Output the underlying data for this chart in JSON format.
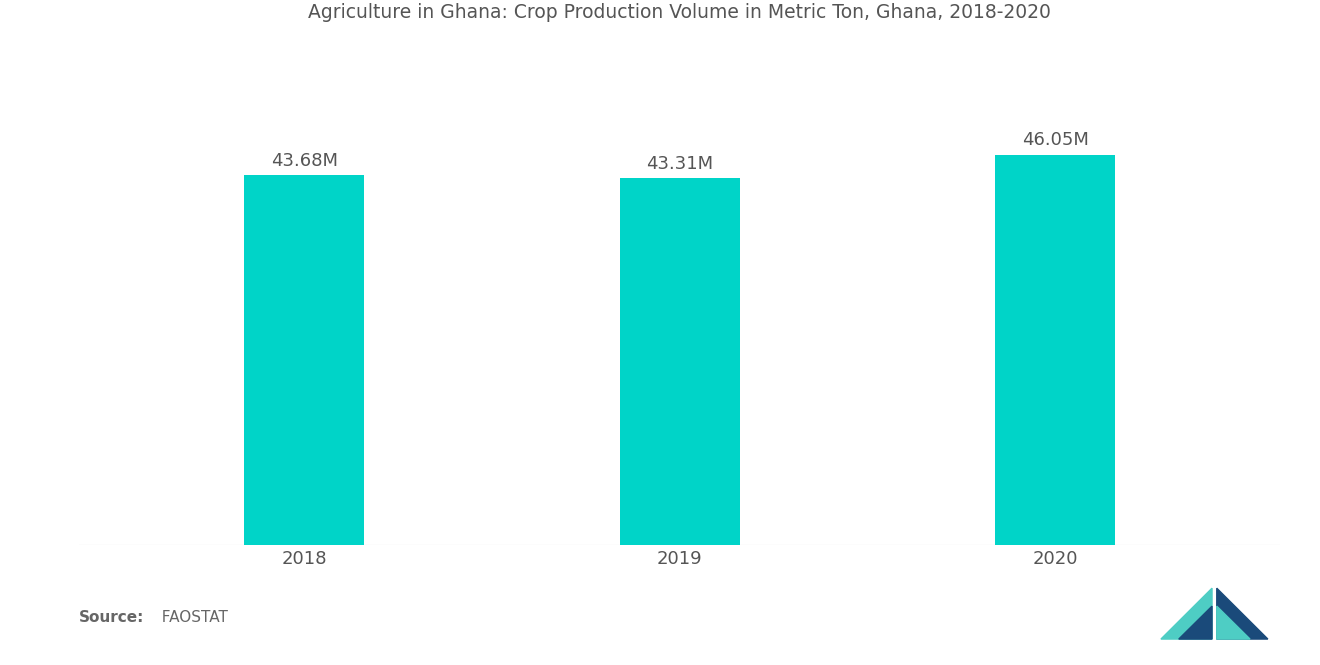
{
  "title": "Agriculture in Ghana: Crop Production Volume in Metric Ton, Ghana, 2018-2020",
  "categories": [
    "2018",
    "2019",
    "2020"
  ],
  "values": [
    43.68,
    43.31,
    46.05
  ],
  "labels": [
    "43.68M",
    "43.31M",
    "46.05M"
  ],
  "bar_color": "#00D4C8",
  "background_color": "#ffffff",
  "title_fontsize": 13.5,
  "label_fontsize": 13,
  "tick_fontsize": 13,
  "source_bold": "Source:",
  "source_normal": "  FAOSTAT",
  "bar_width": 0.32,
  "ylim": [
    0,
    58
  ],
  "title_color": "#555555",
  "label_color": "#555555",
  "tick_color": "#555555",
  "source_color": "#666666"
}
